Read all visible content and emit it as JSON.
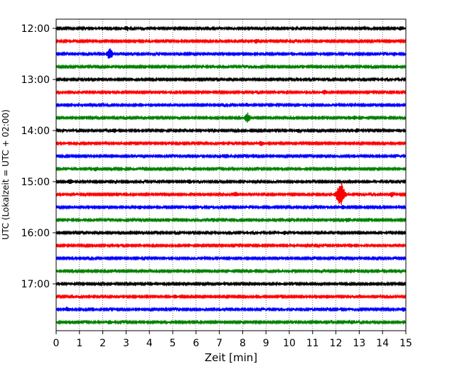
{
  "chart_data": {
    "type": "line",
    "xlabel": "Zeit  [min]",
    "ylabel": "UTC (Lokalzeit = UTC + 02:00)",
    "xlim": [
      0,
      15
    ],
    "x_ticks": [
      "0",
      "1",
      "2",
      "3",
      "4",
      "5",
      "6",
      "7",
      "8",
      "9",
      "10",
      "11",
      "12",
      "13",
      "14",
      "15"
    ],
    "y_tick_labels": [
      "12:00",
      "13:00",
      "14:00",
      "15:00",
      "16:00",
      "17:00"
    ],
    "grid": "vertical dotted",
    "row_interval_minutes": 15,
    "trace_colors": [
      "#000000",
      "#ff0000",
      "#0000ff",
      "#008000"
    ],
    "traces": [
      {
        "start": "12:00",
        "color": "#000000",
        "events": [
          {
            "t": 3.0,
            "amp": 0.3
          },
          {
            "t": 14.8,
            "amp": 0.3
          }
        ]
      },
      {
        "start": "12:15",
        "color": "#ff0000",
        "events": [
          {
            "t": 8.6,
            "amp": 0.4
          }
        ]
      },
      {
        "start": "12:30",
        "color": "#0000ff",
        "events": [
          {
            "t": 2.3,
            "amp": 1.0
          },
          {
            "t": 14.5,
            "amp": 0.3
          }
        ]
      },
      {
        "start": "12:45",
        "color": "#008000",
        "events": []
      },
      {
        "start": "13:00",
        "color": "#000000",
        "events": []
      },
      {
        "start": "13:15",
        "color": "#ff0000",
        "events": [
          {
            "t": 11.5,
            "amp": 0.3
          }
        ]
      },
      {
        "start": "13:30",
        "color": "#0000ff",
        "events": [
          {
            "t": 8.2,
            "amp": 0.3
          }
        ]
      },
      {
        "start": "13:45",
        "color": "#008000",
        "events": [
          {
            "t": 8.2,
            "amp": 0.9
          },
          {
            "t": 12.8,
            "amp": 0.3
          }
        ]
      },
      {
        "start": "14:00",
        "color": "#000000",
        "events": [
          {
            "t": 2.5,
            "amp": 0.3
          },
          {
            "t": 10.4,
            "amp": 0.3
          },
          {
            "t": 12.9,
            "amp": 0.3
          }
        ]
      },
      {
        "start": "14:15",
        "color": "#ff0000",
        "events": [
          {
            "t": 8.8,
            "amp": 0.4
          }
        ]
      },
      {
        "start": "14:30",
        "color": "#0000ff",
        "events": []
      },
      {
        "start": "14:45",
        "color": "#008000",
        "events": [
          {
            "t": 1.7,
            "amp": 0.3
          }
        ]
      },
      {
        "start": "15:00",
        "color": "#000000",
        "events": [
          {
            "t": 0.6,
            "amp": 0.4
          },
          {
            "t": 5.7,
            "amp": 0.3
          }
        ]
      },
      {
        "start": "15:15",
        "color": "#ff0000",
        "events": [
          {
            "t": 7.7,
            "amp": 0.4
          },
          {
            "t": 12.2,
            "amp": 2.3
          },
          {
            "t": 14.4,
            "amp": 0.4
          }
        ]
      },
      {
        "start": "15:30",
        "color": "#0000ff",
        "events": [
          {
            "t": 3.6,
            "amp": 0.3
          },
          {
            "t": 12.3,
            "amp": 0.3
          }
        ]
      },
      {
        "start": "15:45",
        "color": "#008000",
        "events": [
          {
            "t": 10.0,
            "amp": 0.3
          },
          {
            "t": 12.5,
            "amp": 0.3
          }
        ]
      },
      {
        "start": "16:00",
        "color": "#000000",
        "events": [
          {
            "t": 9.8,
            "amp": 0.3
          }
        ]
      },
      {
        "start": "16:15",
        "color": "#ff0000",
        "events": []
      },
      {
        "start": "16:30",
        "color": "#0000ff",
        "events": []
      },
      {
        "start": "16:45",
        "color": "#008000",
        "events": []
      },
      {
        "start": "17:00",
        "color": "#000000",
        "events": []
      },
      {
        "start": "17:15",
        "color": "#ff0000",
        "events": [
          {
            "t": 5.1,
            "amp": 0.3
          }
        ]
      },
      {
        "start": "17:30",
        "color": "#0000ff",
        "events": [
          {
            "t": 0.5,
            "amp": 0.3
          },
          {
            "t": 14.9,
            "amp": 0.3
          }
        ]
      },
      {
        "start": "17:45",
        "color": "#008000",
        "events": [
          {
            "t": 2.3,
            "amp": 0.3
          },
          {
            "t": 12.7,
            "amp": 0.3
          }
        ]
      }
    ]
  }
}
